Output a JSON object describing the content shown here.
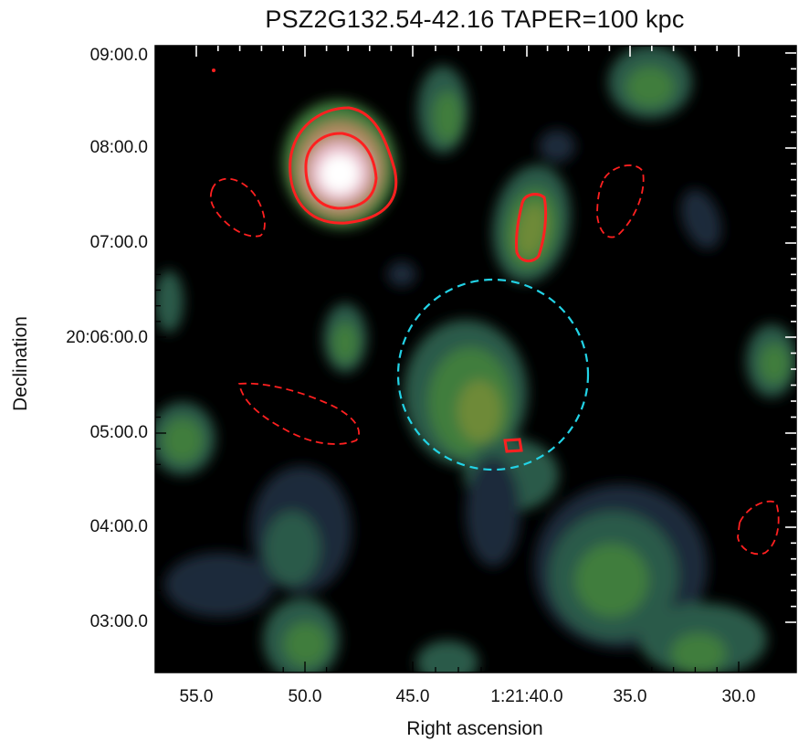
{
  "chart_data": {
    "type": "heatmap",
    "title": "PSZ2G132.54-42.16 TAPER=100 kpc",
    "xlabel": "Right ascension",
    "ylabel": "Declination",
    "x_ticks": [
      "55.0",
      "50.0",
      "45.0",
      "1:21:40.0",
      "35.0",
      "30.0"
    ],
    "y_ticks": [
      "09:00.0",
      "08:00.0",
      "07:00.0",
      "20:06:00.0",
      "05:00.0",
      "04:00.0",
      "03:00.0"
    ],
    "colormap": [
      "#000000",
      "#1b2c3a",
      "#2a5a4a",
      "#3f7d3e",
      "#6e8a38",
      "#b08a60",
      "#e7b8c8",
      "#ffffff"
    ],
    "contour_color": "#ff2020",
    "circle_color": "#22d3e6",
    "grid": false
  }
}
